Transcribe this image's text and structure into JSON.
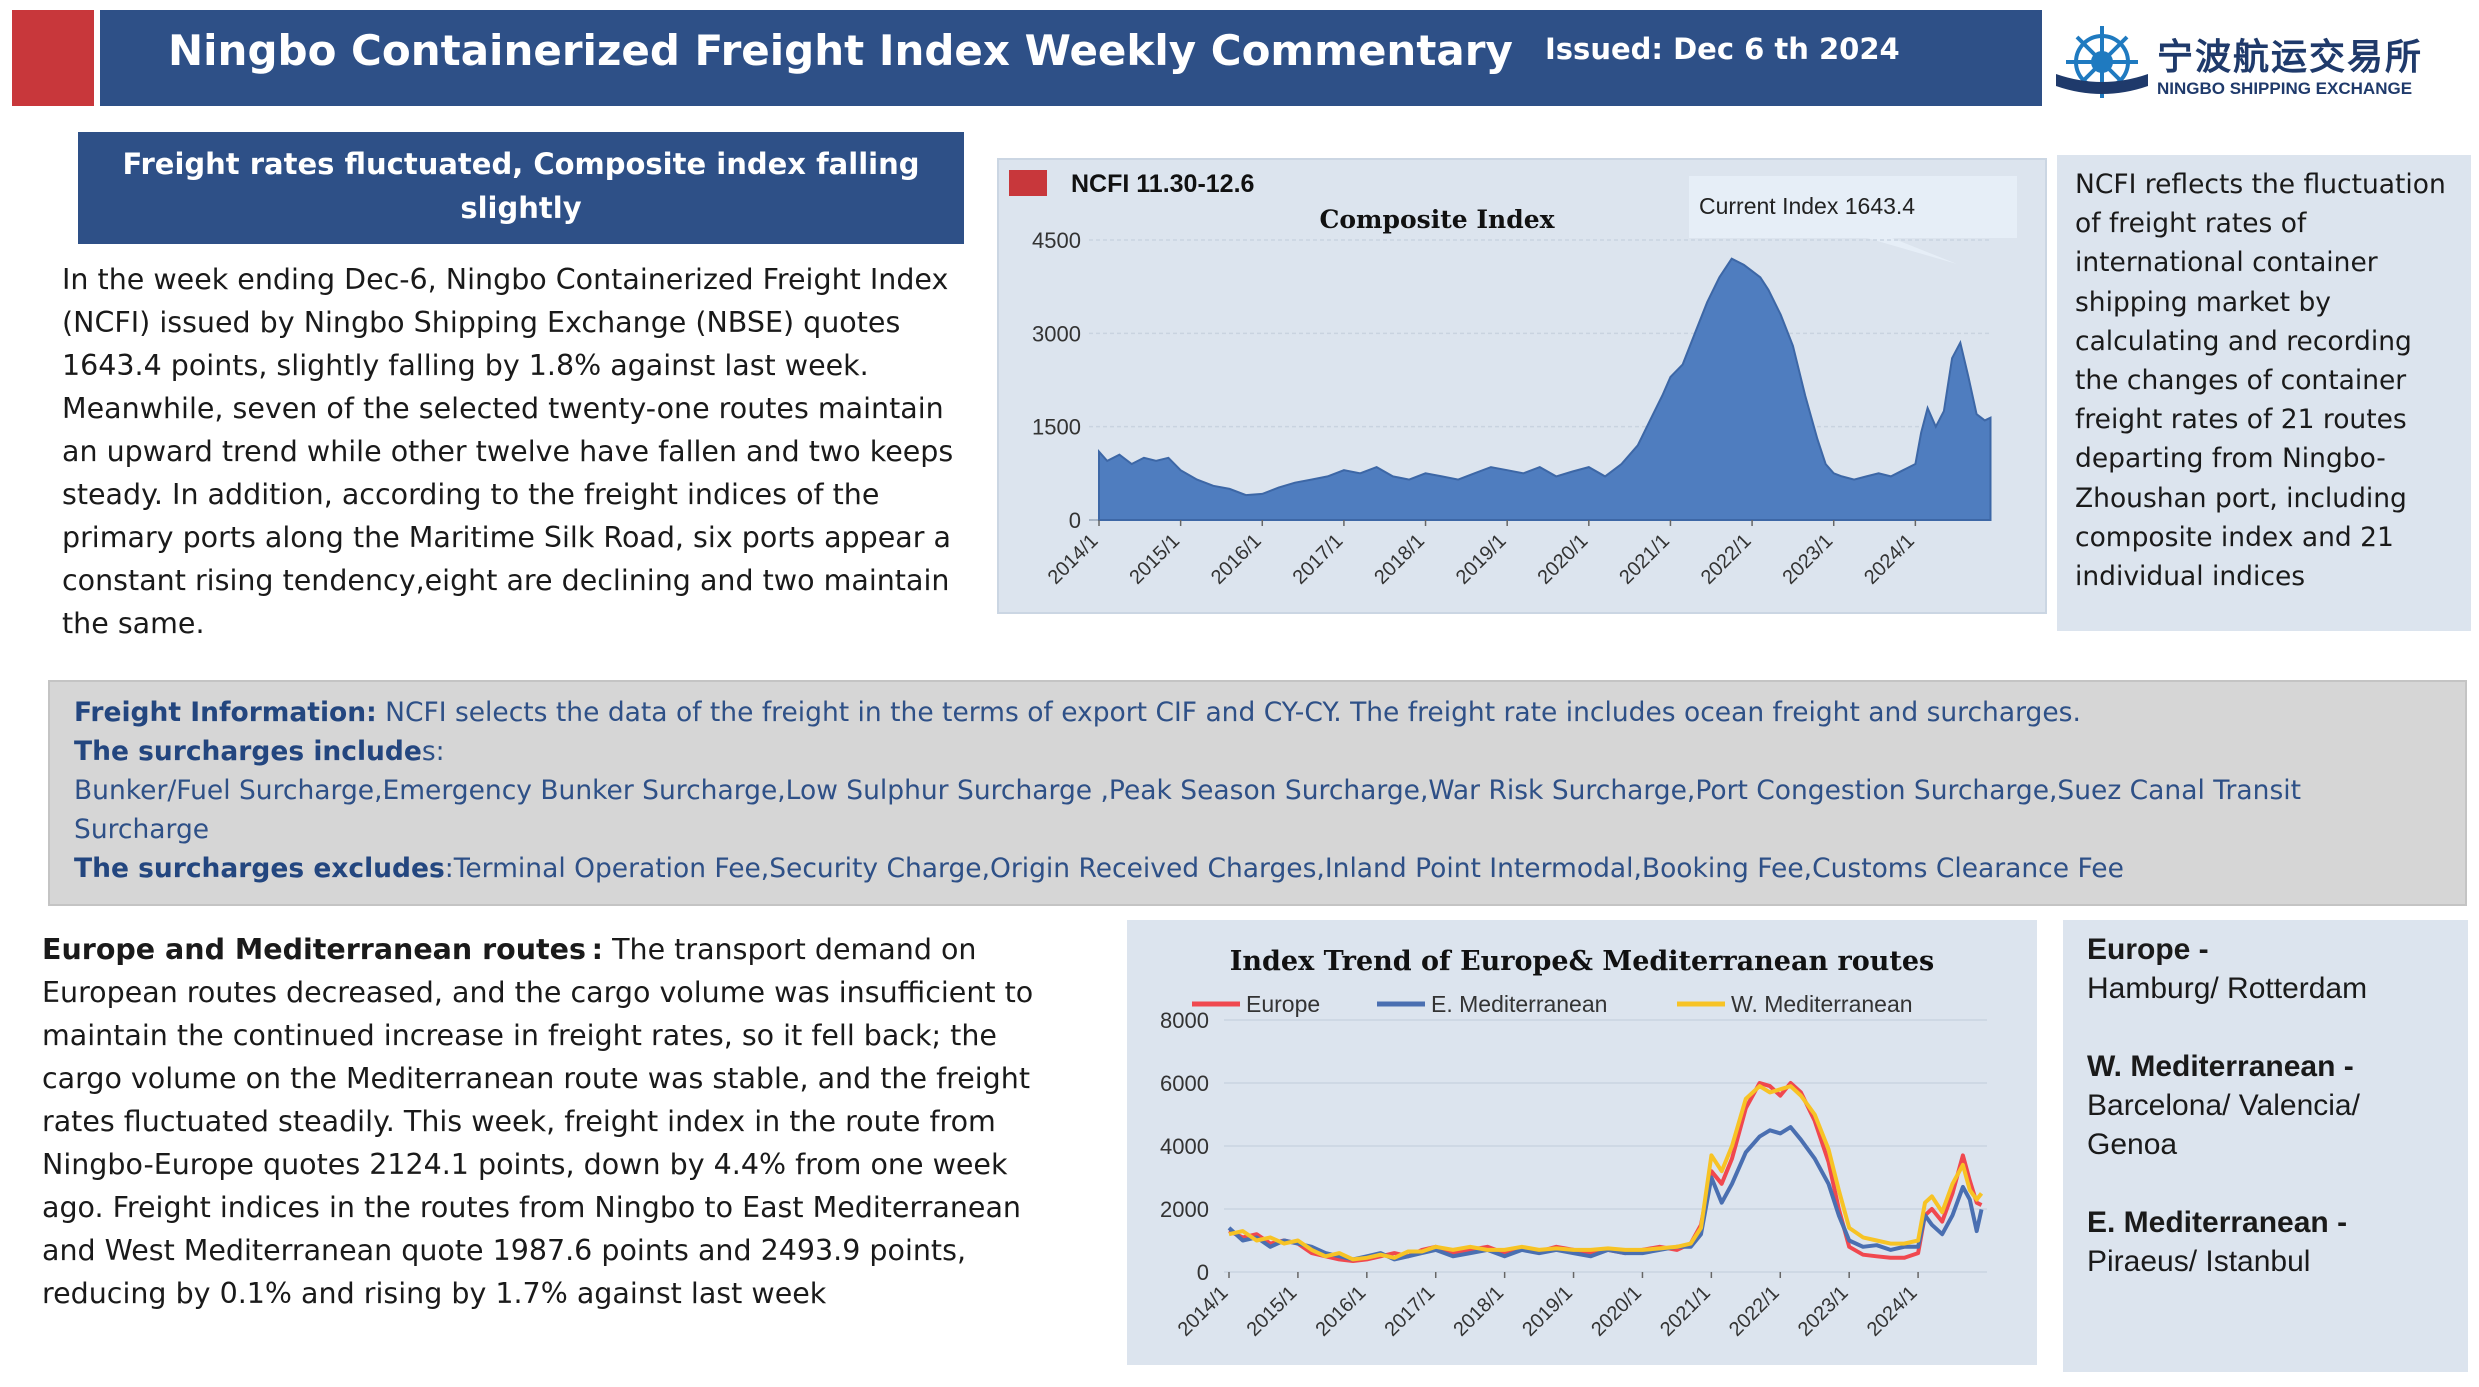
{
  "header": {
    "title": "Ningbo Containerized Freight Index Weekly Commentary",
    "issued": "Issued:  Dec 6 th  2024",
    "logo_cn": "宁波航运交易所",
    "logo_en": "NINGBO SHIPPING EXCHANGE"
  },
  "headline": "Freight rates fluctuated, Composite index  falling slightly",
  "intro": "In the week ending Dec-6, Ningbo Containerized Freight Index (NCFI) issued by Ningbo Shipping Exchange (NBSE) quotes 1643.4 points, slightly falling by 1.8% against last week. Meanwhile, seven of the selected twenty-one routes maintain an upward trend while other twelve have fallen and two keeps steady. In addition, according to the freight indices of the primary ports along the Maritime Silk Road, six ports appear a constant rising tendency,eight are declining and two maintain the same.",
  "side_note": "NCFI reflects the fluctuation of freight rates of international container shipping market by calculating and recording the changes of container freight rates of 21 routes departing from Ningbo-Zhoushan port, including composite index and 21 individual indices",
  "info": {
    "freight_label": "Freight Information:",
    "freight_text": " NCFI selects the data of the freight in the terms of export CIF and CY-CY. The freight  rate includes ocean freight and surcharges.",
    "includes_label": "The surcharges include",
    "includes_suffix": "s:",
    "includes_list": "Bunker/Fuel Surcharge,Emergency Bunker Surcharge,Low Sulphur Surcharge  ,Peak Season Surcharge,War Risk Surcharge,Port Congestion Surcharge,Suez Canal Transit Surcharge",
    "excludes_label": "The surcharges excludes",
    "excludes_list": ":Terminal Operation Fee,Security Charge,Origin Received Charges,Inland Point Intermodal,Booking Fee,Customs Clearance Fee"
  },
  "europe": {
    "heading": "Europe and Mediterranean routes :",
    "text": "  The transport demand on European routes decreased, and the cargo volume was insufficient to maintain the continued increase in freight rates, so it fell back; the cargo volume on the Mediterranean route was stable, and the freight rates fluctuated steadily. This week, freight index in the route from Ningbo-Europe quotes 2124.1 points, down by 4.4% from one week ago. Freight indices in the routes from Ningbo to East Mediterranean and West Mediterranean quote 1987.6 points and 2493.9 points, reducing by 0.1% and rising by 1.7% against last week"
  },
  "routes": [
    {
      "name": "Europe -",
      "ports": "Hamburg/ Rotterdam"
    },
    {
      "name": "W. Mediterranean -",
      "ports": "Barcelona/ Valencia/ Genoa"
    },
    {
      "name": "E. Mediterranean -",
      "ports": "Piraeus/ Istanbul"
    }
  ],
  "colors": {
    "navy": "#2e5087",
    "red": "#c8373b",
    "panel": "#dce4ee",
    "area": "#4f7dbf",
    "europe": "#f0484f",
    "e_med": "#4a6fb1",
    "w_med": "#f7c325"
  },
  "chart_data": [
    {
      "type": "area",
      "title": "Composite Index",
      "legend": "NCFI 11.30-12.6",
      "callout": "Current Index 1643.4",
      "ylim": [
        0,
        4500
      ],
      "yticks": [
        "0",
        "1500",
        "3000",
        "4500"
      ],
      "xticks": [
        "2014/1",
        "2015/1",
        "2016/1",
        "2017/1",
        "2018/1",
        "2019/1",
        "2020/1",
        "2021/1",
        "2022/1",
        "2023/1",
        "2024/1"
      ],
      "x": [
        2014.0,
        2014.1,
        2014.25,
        2014.4,
        2014.55,
        2014.7,
        2014.85,
        2015.0,
        2015.2,
        2015.4,
        2015.6,
        2015.8,
        2016.0,
        2016.2,
        2016.4,
        2016.6,
        2016.8,
        2017.0,
        2017.2,
        2017.4,
        2017.6,
        2017.8,
        2018.0,
        2018.2,
        2018.4,
        2018.6,
        2018.8,
        2019.0,
        2019.2,
        2019.4,
        2019.6,
        2019.8,
        2020.0,
        2020.2,
        2020.4,
        2020.6,
        2020.75,
        2020.9,
        2021.0,
        2021.15,
        2021.3,
        2021.45,
        2021.6,
        2021.75,
        2021.9,
        2022.0,
        2022.1,
        2022.2,
        2022.35,
        2022.5,
        2022.65,
        2022.8,
        2022.9,
        2023.0,
        2023.1,
        2023.25,
        2023.4,
        2023.55,
        2023.7,
        2023.85,
        2024.0,
        2024.07,
        2024.15,
        2024.25,
        2024.35,
        2024.45,
        2024.55,
        2024.65,
        2024.75,
        2024.85,
        2024.92
      ],
      "series": [
        {
          "values": [
            1100,
            950,
            1050,
            900,
            1000,
            950,
            1000,
            800,
            650,
            550,
            500,
            400,
            420,
            520,
            600,
            650,
            700,
            800,
            750,
            850,
            700,
            650,
            750,
            700,
            650,
            750,
            850,
            800,
            750,
            850,
            700,
            780,
            850,
            700,
            900,
            1200,
            1600,
            2000,
            2300,
            2500,
            3000,
            3500,
            3900,
            4200,
            4100,
            4000,
            3900,
            3700,
            3300,
            2800,
            2000,
            1300,
            900,
            750,
            700,
            650,
            700,
            750,
            700,
            800,
            900,
            1400,
            1800,
            1500,
            1750,
            2600,
            2850,
            2300,
            1700,
            1600,
            1643.4
          ]
        }
      ]
    },
    {
      "type": "line",
      "title": "Index Trend of Europe& Mediterranean routes",
      "ylim": [
        0,
        8000
      ],
      "yticks": [
        "0",
        "2000",
        "4000",
        "6000",
        "8000"
      ],
      "xticks": [
        "2014/1",
        "2015/1",
        "2016/1",
        "2017/1",
        "2018/1",
        "2019/1",
        "2020/1",
        "2021/1",
        "2022/1",
        "2023/1",
        "2024/1"
      ],
      "x": [
        2014.0,
        2014.2,
        2014.4,
        2014.6,
        2014.8,
        2015.0,
        2015.2,
        2015.4,
        2015.6,
        2015.8,
        2016.0,
        2016.2,
        2016.4,
        2016.6,
        2016.8,
        2017.0,
        2017.25,
        2017.5,
        2017.75,
        2018.0,
        2018.25,
        2018.5,
        2018.75,
        2019.0,
        2019.25,
        2019.5,
        2019.75,
        2020.0,
        2020.25,
        2020.5,
        2020.7,
        2020.85,
        2021.0,
        2021.15,
        2021.3,
        2021.5,
        2021.7,
        2021.85,
        2022.0,
        2022.15,
        2022.3,
        2022.5,
        2022.7,
        2022.85,
        2023.0,
        2023.2,
        2023.4,
        2023.6,
        2023.8,
        2024.0,
        2024.1,
        2024.2,
        2024.35,
        2024.5,
        2024.65,
        2024.75,
        2024.85,
        2024.92
      ],
      "series": [
        {
          "name": "Europe",
          "values": [
            1300,
            1100,
            1200,
            900,
            1000,
            900,
            600,
            500,
            400,
            350,
            400,
            500,
            600,
            500,
            700,
            800,
            600,
            700,
            800,
            600,
            750,
            650,
            800,
            700,
            600,
            700,
            600,
            700,
            800,
            700,
            900,
            1500,
            3200,
            2800,
            3600,
            5200,
            6000,
            5900,
            5600,
            6000,
            5700,
            4800,
            3500,
            2000,
            800,
            550,
            500,
            450,
            450,
            600,
            1800,
            2000,
            1600,
            2500,
            3700,
            2900,
            2200,
            2124.1
          ]
        },
        {
          "name": "E. Mediterranean",
          "values": [
            1400,
            1000,
            1100,
            800,
            1000,
            900,
            800,
            600,
            500,
            400,
            500,
            600,
            400,
            500,
            600,
            700,
            500,
            600,
            700,
            500,
            700,
            600,
            700,
            600,
            500,
            700,
            600,
            600,
            700,
            800,
            800,
            1200,
            3000,
            2200,
            2800,
            3800,
            4300,
            4500,
            4400,
            4600,
            4200,
            3600,
            2800,
            1800,
            1000,
            800,
            850,
            700,
            800,
            800,
            1800,
            1500,
            1200,
            1800,
            2700,
            2300,
            1300,
            1987.6
          ]
        },
        {
          "name": "W. Mediterranean",
          "values": [
            1200,
            1300,
            1000,
            1100,
            900,
            1000,
            700,
            500,
            600,
            400,
            450,
            550,
            450,
            650,
            650,
            800,
            700,
            800,
            700,
            700,
            800,
            700,
            750,
            700,
            700,
            750,
            700,
            700,
            750,
            800,
            900,
            1400,
            3700,
            3200,
            4000,
            5500,
            5900,
            5700,
            5800,
            5900,
            5600,
            5000,
            3900,
            2600,
            1400,
            1100,
            1000,
            900,
            900,
            1000,
            2200,
            2400,
            1900,
            2800,
            3400,
            2600,
            2300,
            2493.9
          ]
        }
      ]
    }
  ]
}
